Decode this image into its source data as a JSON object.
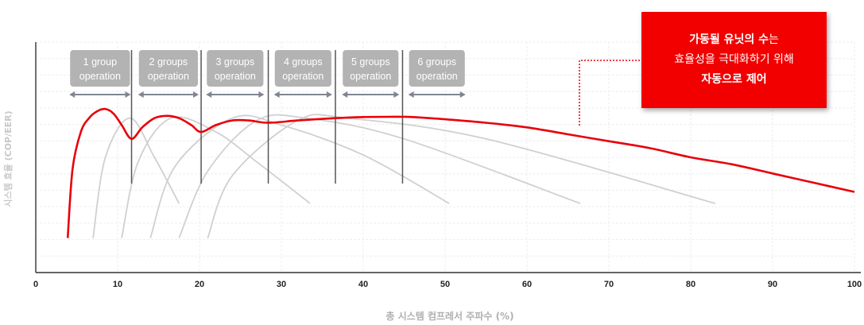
{
  "chart_data": {
    "type": "line",
    "xlabel": "총 시스템 컴프레서 주파수 (%)",
    "ylabel": "시스템 효율 (COP/EER)",
    "xlim": [
      0,
      100
    ],
    "x_ticks": [
      "0",
      "10",
      "20",
      "30",
      "40",
      "50",
      "60",
      "70",
      "80",
      "90",
      "100"
    ],
    "ylim": [
      0,
      1
    ],
    "grid": true,
    "group_boundaries": [
      11.7,
      20.2,
      28.4,
      36.6,
      44.8
    ],
    "groups": [
      {
        "label_line1": "1 group",
        "label_line2": "operation",
        "x_start": 4,
        "x_end": 11.7
      },
      {
        "label_line1": "2 groups",
        "label_line2": "operation",
        "x_start": 12.4,
        "x_end": 20
      },
      {
        "label_line1": "3 groups",
        "label_line2": "operation",
        "x_start": 20.7,
        "x_end": 28
      },
      {
        "label_line1": "4 groups",
        "label_line2": "operation",
        "x_start": 29,
        "x_end": 36.3
      },
      {
        "label_line1": "5 groups",
        "label_line2": "operation",
        "x_start": 37.3,
        "x_end": 44.5
      },
      {
        "label_line1": "6 groups",
        "label_line2": "operation",
        "x_start": 45.4,
        "x_end": 52.6
      }
    ],
    "unit_curves": [
      {
        "x": [
          7,
          8.5,
          11.5,
          14.5,
          17.5
        ],
        "y": [
          0.15,
          0.5,
          0.67,
          0.5,
          0.3
        ]
      },
      {
        "x": [
          10.5,
          12.5,
          16.5,
          22,
          27,
          33.5
        ],
        "y": [
          0.15,
          0.48,
          0.67,
          0.61,
          0.48,
          0.3
        ]
      },
      {
        "x": [
          14,
          17,
          24,
          30,
          40,
          50.5
        ],
        "y": [
          0.15,
          0.46,
          0.67,
          0.64,
          0.51,
          0.3
        ]
      },
      {
        "x": [
          17.5,
          21,
          27,
          33,
          45,
          66.5
        ],
        "y": [
          0.15,
          0.44,
          0.66,
          0.67,
          0.58,
          0.3
        ]
      },
      {
        "x": [
          21,
          24,
          32,
          38,
          55,
          83
        ],
        "y": [
          0.15,
          0.42,
          0.66,
          0.67,
          0.58,
          0.3
        ]
      }
    ],
    "series": [
      {
        "x": [
          3.9,
          4.5,
          5.5,
          6.5,
          7.5,
          8.5,
          9.5,
          10.5,
          11.7,
          13,
          14.5,
          16,
          17.5,
          19,
          20.2,
          22,
          24,
          26,
          28.4,
          32,
          36.6,
          40,
          43,
          46,
          50,
          55,
          60,
          65,
          70,
          75,
          80,
          85,
          90,
          95,
          100
        ],
        "y": [
          0.15,
          0.45,
          0.61,
          0.67,
          0.7,
          0.71,
          0.69,
          0.64,
          0.58,
          0.63,
          0.67,
          0.68,
          0.67,
          0.64,
          0.61,
          0.64,
          0.66,
          0.66,
          0.65,
          0.66,
          0.67,
          0.675,
          0.676,
          0.675,
          0.665,
          0.65,
          0.63,
          0.6,
          0.57,
          0.54,
          0.5,
          0.47,
          0.43,
          0.39,
          0.35
        ]
      }
    ],
    "callout": {
      "line1_bold": "가동될 유닛의 수",
      "line1_rest": "는",
      "line2": "효율성을 극대화하기 위해",
      "line3": "자동으로 제어"
    },
    "colors": {
      "main": "#e8000a",
      "unit": "#d0d0d0",
      "boundary": "#555555",
      "group_box": "#b3b3b3",
      "arrow": "#7f8591",
      "callout_bg": "#f20000"
    }
  }
}
